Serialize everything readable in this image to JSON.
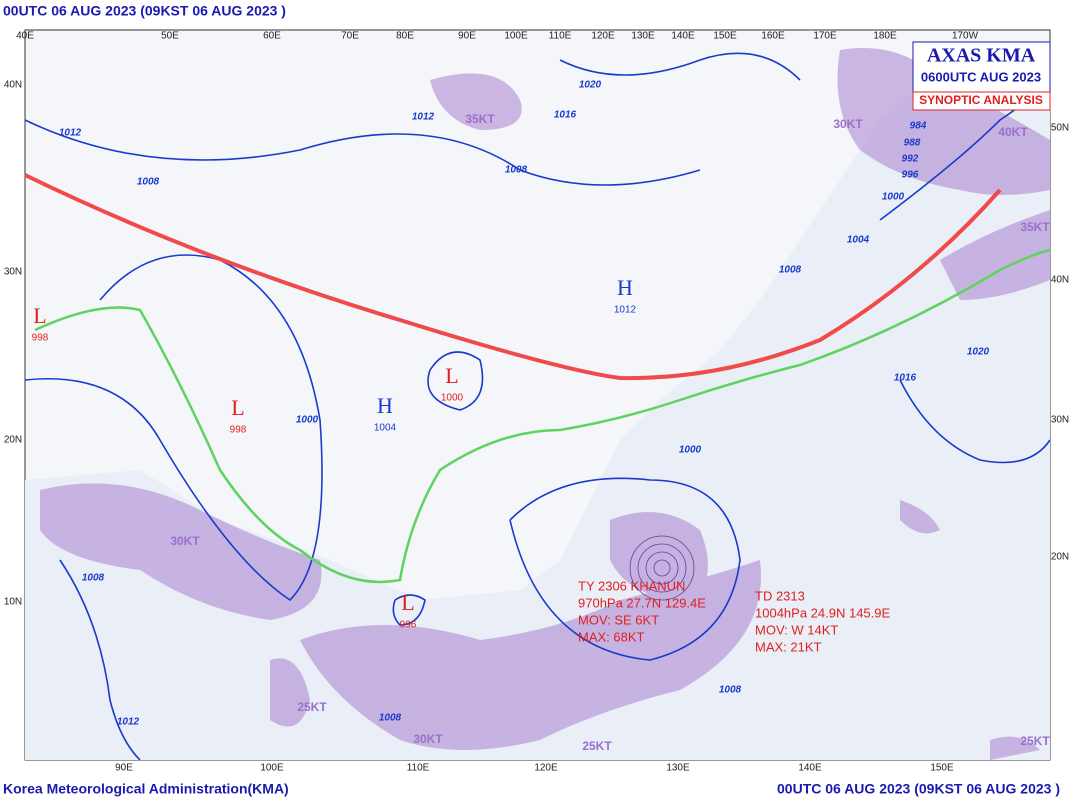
{
  "header": "00UTC 06 AUG 2023 (09KST 06 AUG 2023 )",
  "footer": {
    "left": "Korea Meteorological Administration(KMA)",
    "right": "00UTC 06 AUG 2023 (09KST 06 AUG 2023 )"
  },
  "title_box": {
    "title": "AXAS KMA",
    "time": "0600UTC AUG 2023",
    "subtitle": "SYNOPTIC ANALYSIS"
  },
  "lon_labels_top": [
    "40E",
    "50E",
    "60E",
    "70E",
    "80E",
    "90E",
    "100E",
    "110E",
    "120E",
    "130E",
    "140E",
    "150E",
    "160E",
    "170E",
    "180E",
    "170W"
  ],
  "lon_labels_bottom": [
    "90E",
    "100E",
    "110E",
    "120E",
    "130E",
    "140E",
    "150E"
  ],
  "lat_labels_left": [
    "40N",
    "30N",
    "20N",
    "10N"
  ],
  "lat_labels_right": [
    "50N",
    "40N",
    "30N",
    "20N"
  ],
  "pressure_centers": [
    {
      "letter": "L",
      "value": "998"
    },
    {
      "letter": "L",
      "value": "998"
    },
    {
      "letter": "L",
      "value": "1000"
    },
    {
      "letter": "H",
      "value": "1004"
    },
    {
      "letter": "H",
      "value": "1012"
    },
    {
      "letter": "L",
      "value": "996"
    }
  ],
  "isobar_labels": [
    "1012",
    "1008",
    "1012",
    "1008",
    "1016",
    "1020",
    "1008",
    "1000",
    "1004",
    "984",
    "988",
    "992",
    "996",
    "1016",
    "1020",
    "1000",
    "1008",
    "1012",
    "1008",
    "1000",
    "1008"
  ],
  "typhoon": {
    "name": "TY 2306 KHANUN",
    "position": "970hPa 27.7N 129.4E",
    "movement": "MOV: SE 6KT",
    "max_wind": "MAX: 68KT"
  },
  "depression": {
    "name": "TD 2313",
    "position": "1004hPa 24.9N 145.9E",
    "movement": "MOV: W 14KT",
    "max_wind": "MAX: 21KT"
  },
  "wind_labels": [
    "35KT",
    "30KT",
    "40KT",
    "35KT",
    "30KT",
    "25KT",
    "30KT",
    "25KT",
    "25KT"
  ]
}
